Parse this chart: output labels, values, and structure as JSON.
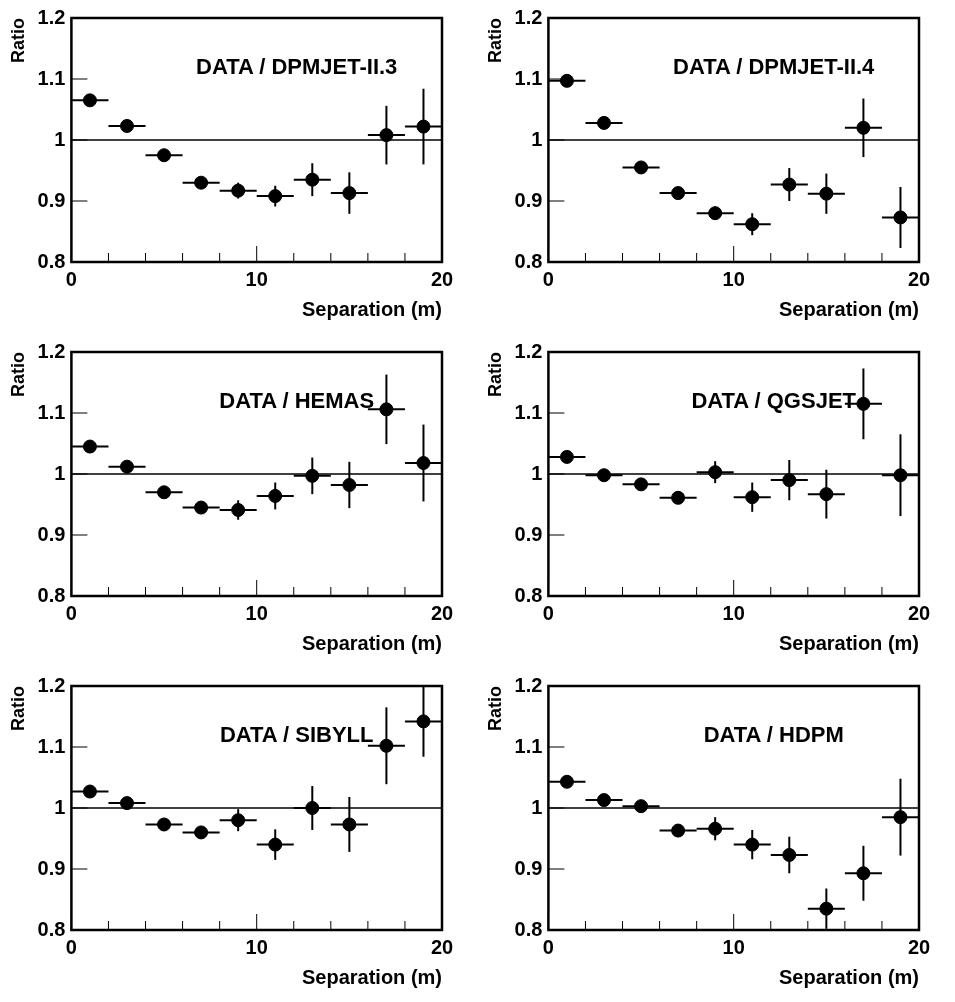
{
  "chart_data": [
    {
      "type": "scatter",
      "annotations": [
        "DATA / DPMJET-II.3"
      ],
      "xlabel": "Separation (m)",
      "ylabel": "Ratio",
      "marker": "circle",
      "grid": false,
      "legend": false,
      "xlim": [
        0,
        20
      ],
      "ylim": [
        0.8,
        1.2
      ],
      "xticks": [
        0,
        {
          "value": 2,
          "label": null
        },
        {
          "value": 4,
          "label": null
        },
        {
          "value": 6,
          "label": null
        },
        {
          "value": 8,
          "label": null
        },
        10,
        {
          "value": 12,
          "label": null
        },
        {
          "value": 14,
          "label": null
        },
        {
          "value": 16,
          "label": null
        },
        {
          "value": 18,
          "label": null
        },
        20
      ],
      "yticks": [
        0.8,
        0.9,
        1,
        1.1,
        1.2
      ],
      "ref_lines": [
        {
          "axis": "y",
          "value": 1,
          "color": "#000000"
        }
      ],
      "series": [
        {
          "color": "#000000",
          "x": [
            1,
            3,
            5,
            7,
            9,
            11,
            13,
            15,
            17,
            19
          ],
          "values": [
            1.065,
            1.023,
            0.975,
            0.93,
            0.917,
            0.908,
            0.935,
            0.913,
            1.008,
            1.022
          ],
          "errors": [
            0.005,
            0.005,
            0.005,
            0.006,
            0.013,
            0.017,
            0.027,
            0.034,
            0.048,
            0.062
          ],
          "xerrors": [
            1,
            1,
            1,
            1,
            1,
            1,
            1,
            1,
            1,
            1
          ]
        }
      ]
    },
    {
      "type": "scatter",
      "annotations": [
        "DATA / DPMJET-II.4"
      ],
      "xlabel": "Separation (m)",
      "ylabel": "Ratio",
      "marker": "circle",
      "grid": false,
      "legend": false,
      "xlim": [
        0,
        20
      ],
      "ylim": [
        0.8,
        1.2
      ],
      "xticks": [
        0,
        {
          "value": 2,
          "label": null
        },
        {
          "value": 4,
          "label": null
        },
        {
          "value": 6,
          "label": null
        },
        {
          "value": 8,
          "label": null
        },
        10,
        {
          "value": 12,
          "label": null
        },
        {
          "value": 14,
          "label": null
        },
        {
          "value": 16,
          "label": null
        },
        {
          "value": 18,
          "label": null
        },
        20
      ],
      "yticks": [
        0.8,
        0.9,
        1,
        1.1,
        1.2
      ],
      "ref_lines": [
        {
          "axis": "y",
          "value": 1,
          "color": "#000000"
        }
      ],
      "series": [
        {
          "color": "#000000",
          "x": [
            1,
            3,
            5,
            7,
            9,
            11,
            13,
            15,
            17,
            19
          ],
          "values": [
            1.097,
            1.028,
            0.955,
            0.913,
            0.88,
            0.862,
            0.927,
            0.912,
            1.02,
            0.873
          ],
          "errors": [
            0.005,
            0.006,
            0.006,
            0.006,
            0.011,
            0.018,
            0.027,
            0.033,
            0.048,
            0.05
          ],
          "xerrors": [
            1,
            1,
            1,
            1,
            1,
            1,
            1,
            1,
            1,
            1
          ]
        }
      ]
    },
    {
      "type": "scatter",
      "annotations": [
        "DATA / HEMAS"
      ],
      "xlabel": "Separation (m)",
      "ylabel": "Ratio",
      "marker": "circle",
      "grid": false,
      "legend": false,
      "xlim": [
        0,
        20
      ],
      "ylim": [
        0.8,
        1.2
      ],
      "xticks": [
        0,
        {
          "value": 2,
          "label": null
        },
        {
          "value": 4,
          "label": null
        },
        {
          "value": 6,
          "label": null
        },
        {
          "value": 8,
          "label": null
        },
        10,
        {
          "value": 12,
          "label": null
        },
        {
          "value": 14,
          "label": null
        },
        {
          "value": 16,
          "label": null
        },
        {
          "value": 18,
          "label": null
        },
        20
      ],
      "yticks": [
        0.8,
        0.9,
        1,
        1.1,
        1.2
      ],
      "ref_lines": [
        {
          "axis": "y",
          "value": 1,
          "color": "#000000"
        }
      ],
      "series": [
        {
          "color": "#000000",
          "x": [
            1,
            3,
            5,
            7,
            9,
            11,
            13,
            15,
            17,
            19
          ],
          "values": [
            1.045,
            1.012,
            0.97,
            0.945,
            0.941,
            0.964,
            0.997,
            0.982,
            1.106,
            1.018
          ],
          "errors": [
            0.005,
            0.005,
            0.005,
            0.007,
            0.016,
            0.022,
            0.03,
            0.038,
            0.057,
            0.063
          ],
          "xerrors": [
            1,
            1,
            1,
            1,
            1,
            1,
            1,
            1,
            1,
            1
          ]
        }
      ]
    },
    {
      "type": "scatter",
      "annotations": [
        "DATA / QGSJET"
      ],
      "xlabel": "Separation (m)",
      "ylabel": "Ratio",
      "marker": "circle",
      "grid": false,
      "legend": false,
      "xlim": [
        0,
        20
      ],
      "ylim": [
        0.8,
        1.2
      ],
      "xticks": [
        0,
        {
          "value": 2,
          "label": null
        },
        {
          "value": 4,
          "label": null
        },
        {
          "value": 6,
          "label": null
        },
        {
          "value": 8,
          "label": null
        },
        10,
        {
          "value": 12,
          "label": null
        },
        {
          "value": 14,
          "label": null
        },
        {
          "value": 16,
          "label": null
        },
        {
          "value": 18,
          "label": null
        },
        20
      ],
      "yticks": [
        0.8,
        0.9,
        1,
        1.1,
        1.2
      ],
      "ref_lines": [
        {
          "axis": "y",
          "value": 1,
          "color": "#000000"
        }
      ],
      "series": [
        {
          "color": "#000000",
          "x": [
            1,
            3,
            5,
            7,
            9,
            11,
            13,
            15,
            17,
            19
          ],
          "values": [
            1.028,
            0.998,
            0.983,
            0.961,
            1.003,
            0.962,
            0.99,
            0.967,
            1.115,
            0.998
          ],
          "errors": [
            0.005,
            0.006,
            0.006,
            0.008,
            0.018,
            0.024,
            0.033,
            0.04,
            0.058,
            0.067
          ],
          "xerrors": [
            1,
            1,
            1,
            1,
            1,
            1,
            1,
            1,
            1,
            1
          ]
        }
      ]
    },
    {
      "type": "scatter",
      "annotations": [
        "DATA / SIBYLL"
      ],
      "xlabel": "Separation (m)",
      "ylabel": "Ratio",
      "marker": "circle",
      "grid": false,
      "legend": false,
      "xlim": [
        0,
        20
      ],
      "ylim": [
        0.8,
        1.2
      ],
      "xticks": [
        0,
        {
          "value": 2,
          "label": null
        },
        {
          "value": 4,
          "label": null
        },
        {
          "value": 6,
          "label": null
        },
        {
          "value": 8,
          "label": null
        },
        10,
        {
          "value": 12,
          "label": null
        },
        {
          "value": 14,
          "label": null
        },
        {
          "value": 16,
          "label": null
        },
        {
          "value": 18,
          "label": null
        },
        20
      ],
      "yticks": [
        0.8,
        0.9,
        1,
        1.1,
        1.2
      ],
      "ref_lines": [
        {
          "axis": "y",
          "value": 1,
          "color": "#000000"
        }
      ],
      "series": [
        {
          "color": "#000000",
          "x": [
            1,
            3,
            5,
            7,
            9,
            11,
            13,
            15,
            17,
            19
          ],
          "values": [
            1.027,
            1.008,
            0.973,
            0.96,
            0.98,
            0.94,
            1.0,
            0.973,
            1.102,
            1.142
          ],
          "errors": [
            0.005,
            0.006,
            0.006,
            0.01,
            0.018,
            0.025,
            0.036,
            0.045,
            0.063,
            0.058
          ],
          "xerrors": [
            1,
            1,
            1,
            1,
            1,
            1,
            1,
            1,
            1,
            1
          ]
        }
      ]
    },
    {
      "type": "scatter",
      "annotations": [
        "DATA / HDPM"
      ],
      "xlabel": "Separation (m)",
      "ylabel": "Ratio",
      "marker": "circle",
      "grid": false,
      "legend": false,
      "xlim": [
        0,
        20
      ],
      "ylim": [
        0.8,
        1.2
      ],
      "xticks": [
        0,
        {
          "value": 2,
          "label": null
        },
        {
          "value": 4,
          "label": null
        },
        {
          "value": 6,
          "label": null
        },
        {
          "value": 8,
          "label": null
        },
        10,
        {
          "value": 12,
          "label": null
        },
        {
          "value": 14,
          "label": null
        },
        {
          "value": 16,
          "label": null
        },
        {
          "value": 18,
          "label": null
        },
        20
      ],
      "yticks": [
        0.8,
        0.9,
        1,
        1.1,
        1.2
      ],
      "ref_lines": [
        {
          "axis": "y",
          "value": 1,
          "color": "#000000"
        }
      ],
      "series": [
        {
          "color": "#000000",
          "x": [
            1,
            3,
            5,
            7,
            9,
            11,
            13,
            15,
            17,
            19
          ],
          "values": [
            1.043,
            1.013,
            1.003,
            0.963,
            0.966,
            0.94,
            0.923,
            0.835,
            0.893,
            0.985
          ],
          "errors": [
            0.005,
            0.006,
            0.006,
            0.01,
            0.019,
            0.024,
            0.03,
            0.033,
            0.045,
            0.063
          ],
          "xerrors": [
            1,
            1,
            1,
            1,
            1,
            1,
            1,
            1,
            1,
            1
          ]
        }
      ]
    }
  ]
}
